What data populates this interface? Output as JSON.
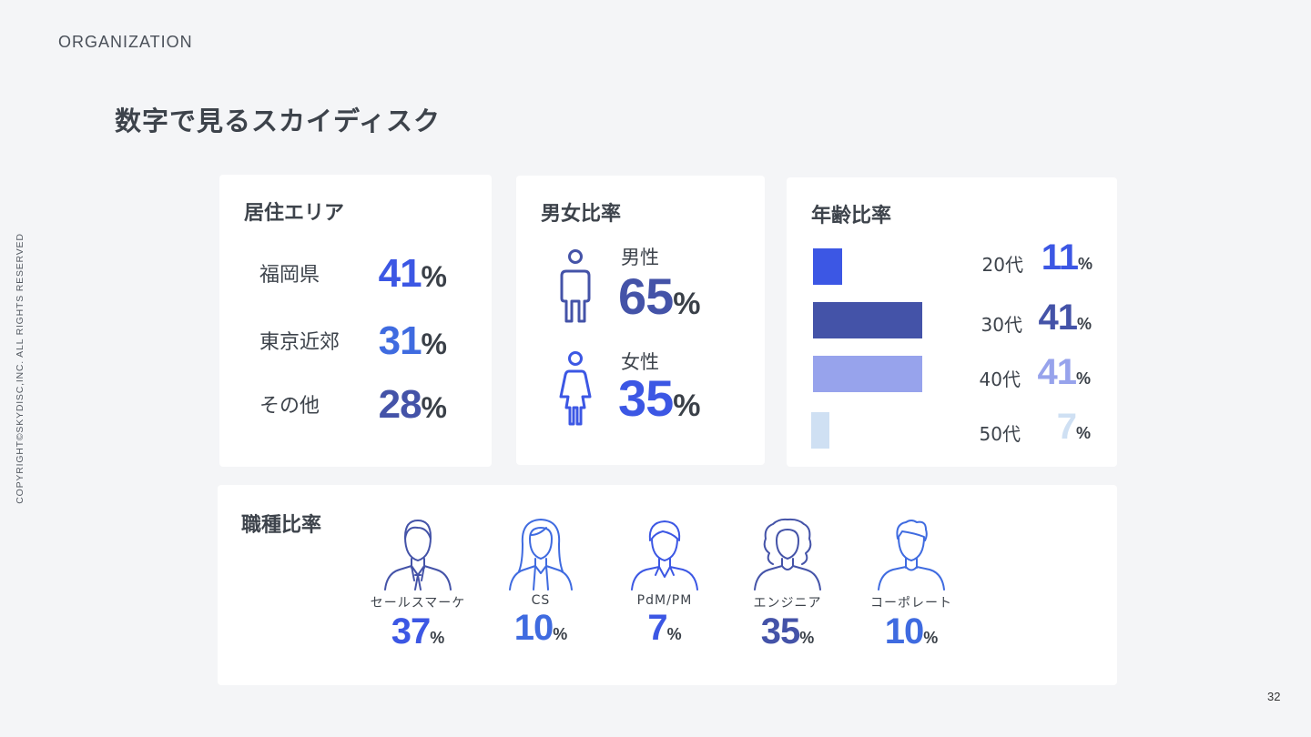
{
  "header": {
    "section": "ORGANIZATION",
    "title": "数字で見るスカイディスク",
    "page_number": "32"
  },
  "copyright": "COPYRIGHT©SKYDISC,INC. ALL RIGHTS RESERVED",
  "residence": {
    "title": "居住エリア",
    "items": [
      {
        "label": "福岡県",
        "value": "41",
        "unit": "%",
        "color": "#3c57e4"
      },
      {
        "label": "東京近郊",
        "value": "31",
        "unit": "%",
        "color": "#3f6be0"
      },
      {
        "label": "その他",
        "value": "28",
        "unit": "%",
        "color": "#4453a8"
      }
    ]
  },
  "gender": {
    "title": "男女比率",
    "male": {
      "label": "男性",
      "value": "65",
      "unit": "%",
      "color": "#4453a8",
      "icon": "male-icon"
    },
    "female": {
      "label": "女性",
      "value": "35",
      "unit": "%",
      "color": "#3c57e4",
      "icon": "female-icon"
    }
  },
  "age": {
    "title": "年齢比率",
    "items": [
      {
        "label": "20代",
        "value": "11",
        "unit": "%",
        "color": "#3c57e4",
        "share": 11
      },
      {
        "label": "30代",
        "value": "41",
        "unit": "%",
        "color": "#4453a8",
        "share": 41
      },
      {
        "label": "40代",
        "value": "41",
        "unit": "%",
        "color": "#97a3ec",
        "share": 41
      },
      {
        "label": "50代",
        "value": "7",
        "unit": "%",
        "color": "#cfe0f3",
        "share": 7
      }
    ]
  },
  "jobs": {
    "title": "職種比率",
    "items": [
      {
        "label": "セールスマーケ",
        "value": "37",
        "unit": "%",
        "color": "#3c57e4",
        "icon": "businessman-icon"
      },
      {
        "label": "CS",
        "value": "10",
        "unit": "%",
        "color": "#3f6be0",
        "icon": "woman-long-hair-icon"
      },
      {
        "label": "PdM/PM",
        "value": "7",
        "unit": "%",
        "color": "#3c57e4",
        "icon": "man-icon"
      },
      {
        "label": "エンジニア",
        "value": "35",
        "unit": "%",
        "color": "#4453a8",
        "icon": "woman-curly-hair-icon"
      },
      {
        "label": "コーポレート",
        "value": "10",
        "unit": "%",
        "color": "#3f6be0",
        "icon": "man-short-hair-icon"
      }
    ]
  }
}
